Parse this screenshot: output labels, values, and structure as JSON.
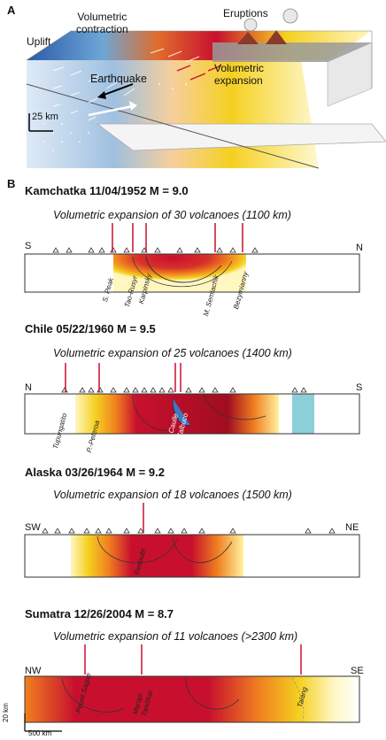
{
  "panelA": {
    "letter": "A",
    "labels": {
      "volumetric_contraction": "Volumetric\ncontraction",
      "eruptions": "Eruptions",
      "uplift": "Uplift",
      "earthquake": "Earthquake",
      "volumetric_expansion": "Volumetric\nexpansion",
      "scale": "25 km"
    }
  },
  "panelB": {
    "letter": "B",
    "sections": [
      {
        "title": "Kamchatka 11/04/1952   M = 9.0",
        "subtitle": "Volumetric expansion of 30 volcanoes (1100 km)",
        "left_dir": "S",
        "right_dir": "N",
        "volcanoes": [
          "S. Peak",
          "Tao-Rusyr",
          "Karpinsky",
          "M. Semiachik",
          "Bezymianny"
        ]
      },
      {
        "title": "Chile 05/22/1960   M = 9.5",
        "subtitle": "Volumetric expansion of 25 volcanoes (1400 km)",
        "left_dir": "N",
        "right_dir": "S",
        "volcanoes": [
          "Tupungatito",
          "P.-Peteroa",
          "C. Caulle",
          "Calbuco"
        ]
      },
      {
        "title": "Alaska 03/26/1964   M = 9.2",
        "subtitle": "Volumetric expansion of 18 volcanoes (1500 km)",
        "left_dir": "SW",
        "right_dir": "NE",
        "volcanoes": [
          "Redoubt"
        ]
      },
      {
        "title": "Sumatra 12/26/2004   M = 8.7",
        "subtitle": "Volumetric expansion of 11 volcanoes (>2300 km)",
        "left_dir": "NW",
        "right_dir": "SE",
        "volcanoes": [
          "Peuet Sague",
          "Marapi",
          "Tandikat",
          "Talang"
        ]
      }
    ],
    "scale_vertical": "20 km",
    "scale_horizontal": "500 km"
  },
  "colors": {
    "red": "#c8102e",
    "dark_red": "#8b0000",
    "orange": "#f08020",
    "yellow": "#f5d020",
    "pale_yellow": "#fff2a0",
    "cyan": "#8ccfd8",
    "blue": "#3e78c0"
  }
}
